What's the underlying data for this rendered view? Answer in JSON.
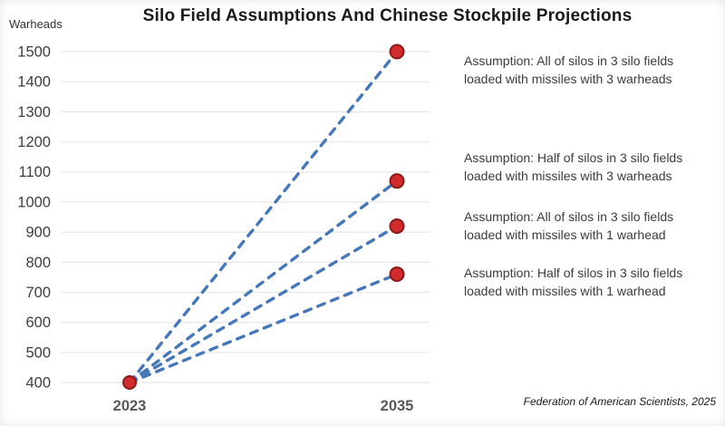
{
  "title": "Silo Field Assumptions And Chinese Stockpile Projections",
  "y_axis_unit": "Warheads",
  "attribution": "Federation of American Scientists, 2025",
  "chart_data": {
    "type": "line",
    "title": "Silo Field Assumptions And Chinese Stockpile Projections",
    "xlabel": "",
    "ylabel": "Warheads",
    "x": [
      2023,
      2035
    ],
    "x_tick_labels": [
      "2023",
      "2035"
    ],
    "ylim": [
      400,
      1500
    ],
    "y_tick_step": 100,
    "y_tick_labels": [
      "400",
      "500",
      "600",
      "700",
      "800",
      "900",
      "1000",
      "1100",
      "1200",
      "1300",
      "1400",
      "1500"
    ],
    "grid": "horizontal",
    "line_style": "dashed",
    "line_color": "#4577b9",
    "grid_color": "#e7e7e7",
    "marker": {
      "shape": "circle",
      "fill": "#d22b2b",
      "stroke": "#8c1a1a"
    },
    "legend_position": "right-side annotations",
    "series": [
      {
        "name": "Assumption: All of silos in 3 silo fields loaded with missiles with 3 warheads",
        "values": [
          400,
          1500
        ]
      },
      {
        "name": "Assumption: Half of silos in 3 silo fields loaded with missiles with 3 warheads",
        "values": [
          400,
          1070
        ]
      },
      {
        "name": "Assumption: All of silos in 3 silo fields loaded with missiles with 1 warhead",
        "values": [
          400,
          920
        ]
      },
      {
        "name": "Assumption: Half of silos in 3 silo fields loaded with missiles with 1 warhead",
        "values": [
          400,
          760
        ]
      }
    ]
  },
  "annotations": [
    {
      "line1": "Assumption: All of silos in 3 silo fields",
      "line2": "loaded with missiles with 3 warheads"
    },
    {
      "line1": "Assumption: Half of silos in 3 silo fields",
      "line2": "loaded with missiles with 3 warheads"
    },
    {
      "line1": "Assumption: All of silos in 3 silo fields",
      "line2": "loaded with missiles with 1 warhead"
    },
    {
      "line1": "Assumption: Half of silos in 3 silo fields",
      "line2": "loaded with missiles with 1 warhead"
    }
  ],
  "tick_text_color": "#3f3f3f",
  "x_tick_text_color": "#595959"
}
